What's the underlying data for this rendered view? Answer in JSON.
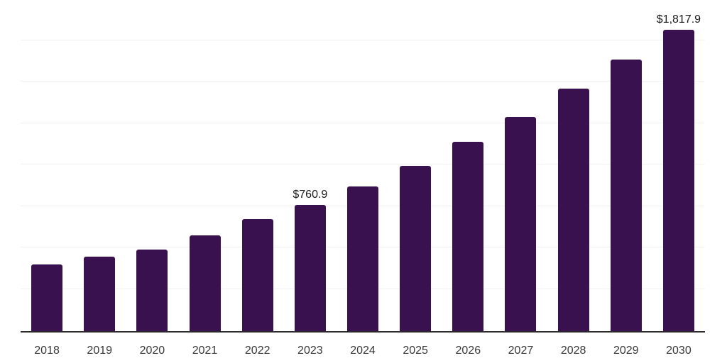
{
  "chart": {
    "background": "#ffffff",
    "bar_color": "#38114e",
    "axis_line_color": "#2b2b2b",
    "gridline_color": "#f1f1f1",
    "top_gridline_color": "#e2e2e2",
    "tick_label_color": "#3a3a3a",
    "data_label_color": "#1a1a1a"
  },
  "chart_data": {
    "type": "bar",
    "title": "",
    "xlabel": "",
    "ylabel": "",
    "categories": [
      "2018",
      "2019",
      "2020",
      "2021",
      "2022",
      "2023",
      "2024",
      "2025",
      "2026",
      "2027",
      "2028",
      "2029",
      "2030"
    ],
    "values": [
      402,
      449,
      492,
      577,
      675,
      760.9,
      872,
      996,
      1142,
      1291,
      1462,
      1637,
      1817.9
    ],
    "data_labels": [
      {
        "category": "2023",
        "label": "$760.9"
      },
      {
        "category": "2030",
        "label": "$1,817.9"
      }
    ],
    "ylim": [
      0,
      2000
    ],
    "grid_step": 250,
    "grid": "horizontal-only",
    "y_axis_labels": "none",
    "legend": "none"
  }
}
